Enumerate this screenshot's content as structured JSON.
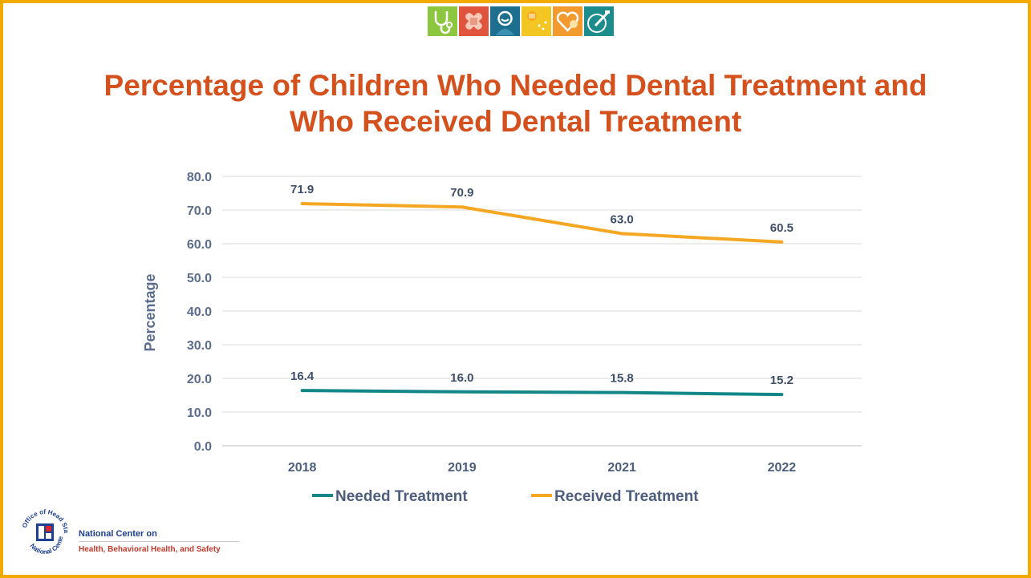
{
  "title": "Percentage of Children Who Needed Dental Treatment and Who Received Dental Treatment",
  "banner_icons": [
    {
      "icon": "stethoscope-icon",
      "color": "#8dc63f"
    },
    {
      "icon": "bandage-icon",
      "color": "#e0533c"
    },
    {
      "icon": "child-icon",
      "color": "#1e6f8f"
    },
    {
      "icon": "food-icon",
      "color": "#f3c623"
    },
    {
      "icon": "heart-icon",
      "color": "#f29a2e"
    },
    {
      "icon": "toothbrush-icon",
      "color": "#1c8c8c"
    }
  ],
  "chart_data": {
    "type": "line",
    "title": "Percentage of Children Who Needed Dental Treatment and Who Received Dental Treatment",
    "categories": [
      "2018",
      "2019",
      "2021",
      "2022"
    ],
    "ylabel": "Percentage",
    "xlabel": "",
    "ylim": [
      0,
      80
    ],
    "yticks": [
      "0.0",
      "10.0",
      "20.0",
      "30.0",
      "40.0",
      "50.0",
      "60.0",
      "70.0",
      "80.0"
    ],
    "grid": true,
    "legend_position": "bottom",
    "series": [
      {
        "name": "Needed Treatment",
        "color": "#138787",
        "values": [
          16.4,
          16.0,
          15.8,
          15.2
        ],
        "labels": [
          "16.4",
          "16.0",
          "15.8",
          "15.2"
        ]
      },
      {
        "name": "Received Treatment",
        "color": "#f5a623",
        "values": [
          71.9,
          70.9,
          63.0,
          60.5
        ],
        "labels": [
          "71.9",
          "70.9",
          "63.0",
          "60.5"
        ]
      }
    ]
  },
  "footer": {
    "logo_text": "Office of Head Start · National Center",
    "org_line1": "National Center on",
    "org_line2": "Health, Behavioral Health, and Safety"
  }
}
